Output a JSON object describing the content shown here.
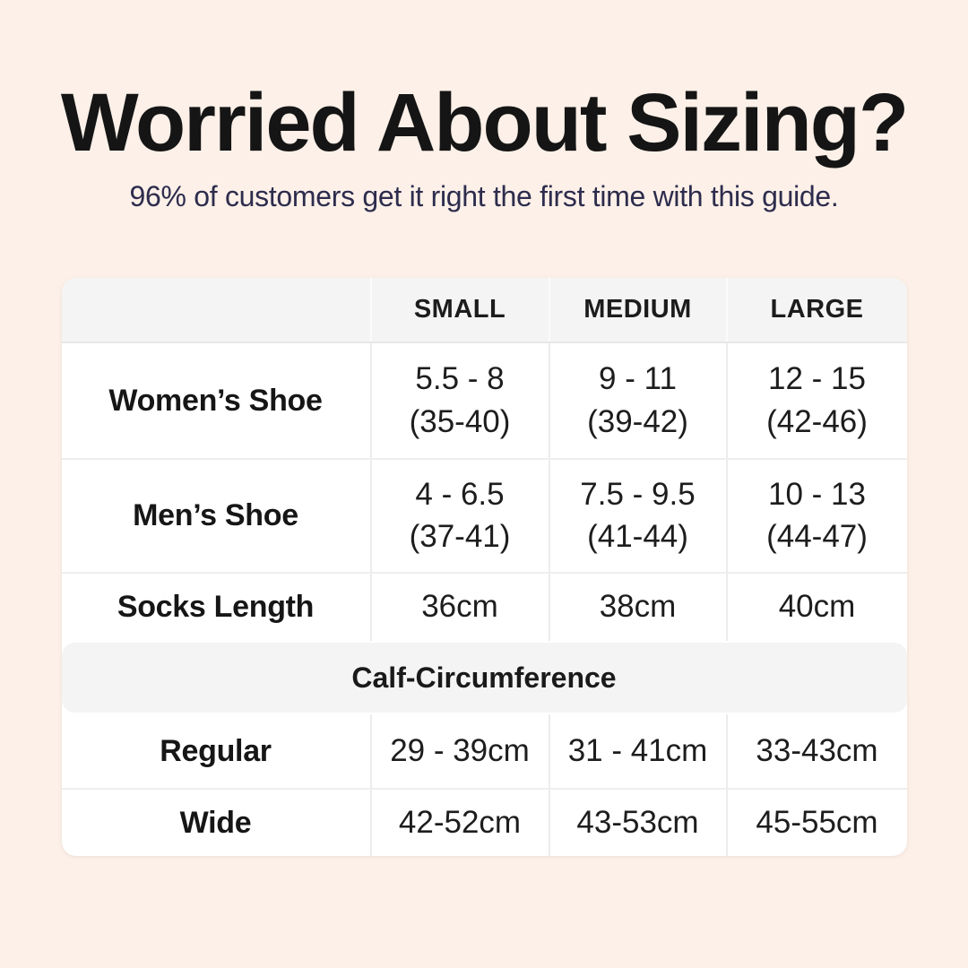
{
  "header": {
    "title": "Worried About Sizing?",
    "subtitle": "96% of customers get it right the first time with this guide."
  },
  "colors": {
    "page_background": "#fcf0e8",
    "card_background": "#ffffff",
    "band_background": "#f5f4f4",
    "divider": "#edecec",
    "title_text": "#151515",
    "subtitle_text": "#2d2c4d",
    "table_text": "#1d1d1d"
  },
  "table": {
    "column_headers": [
      "SMALL",
      "MEDIUM",
      "LARGE"
    ],
    "rows": [
      {
        "label": "Women’s Shoe",
        "cells": [
          {
            "line1": "5.5 - 8",
            "line2": "(35-40)"
          },
          {
            "line1": "9 - 11",
            "line2": "(39-42)"
          },
          {
            "line1": "12 - 15",
            "line2": "(42-46)"
          }
        ]
      },
      {
        "label": "Men’s Shoe",
        "cells": [
          {
            "line1": "4 - 6.5",
            "line2": "(37-41)"
          },
          {
            "line1": "7.5 - 9.5",
            "line2": "(41-44)"
          },
          {
            "line1": "10 - 13",
            "line2": "(44-47)"
          }
        ]
      },
      {
        "label": "Socks Length",
        "cells": [
          {
            "line1": "36cm"
          },
          {
            "line1": "38cm"
          },
          {
            "line1": "40cm"
          }
        ]
      }
    ],
    "section_header": "Calf-Circumference",
    "calf_rows": [
      {
        "label": "Regular",
        "cells": [
          {
            "line1": "29 - 39cm"
          },
          {
            "line1": "31 - 41cm"
          },
          {
            "line1": "33-43cm"
          }
        ]
      },
      {
        "label": "Wide",
        "cells": [
          {
            "line1": "42-52cm"
          },
          {
            "line1": "43-53cm"
          },
          {
            "line1": "45-55cm"
          }
        ]
      }
    ]
  },
  "chart_data": {
    "type": "table",
    "title": "Worried About Sizing?",
    "subtitle": "96% of customers get it right the first time with this guide.",
    "columns": [
      "",
      "SMALL",
      "MEDIUM",
      "LARGE"
    ],
    "rows": [
      [
        "Women’s Shoe",
        "5.5 - 8 (35-40)",
        "9 - 11 (39-42)",
        "12 - 15 (42-46)"
      ],
      [
        "Men’s Shoe",
        "4 - 6.5 (37-41)",
        "7.5 - 9.5 (41-44)",
        "10 - 13 (44-47)"
      ],
      [
        "Socks Length",
        "36cm",
        "38cm",
        "40cm"
      ],
      [
        "Calf-Circumference",
        "",
        "",
        ""
      ],
      [
        "Regular",
        "29 - 39cm",
        "31 - 41cm",
        "33-43cm"
      ],
      [
        "Wide",
        "42-52cm",
        "43-53cm",
        "45-55cm"
      ]
    ],
    "layout_hints": {
      "section_header_row_index": 3,
      "header_style": "light-gray band",
      "grid": "light dividers"
    }
  }
}
